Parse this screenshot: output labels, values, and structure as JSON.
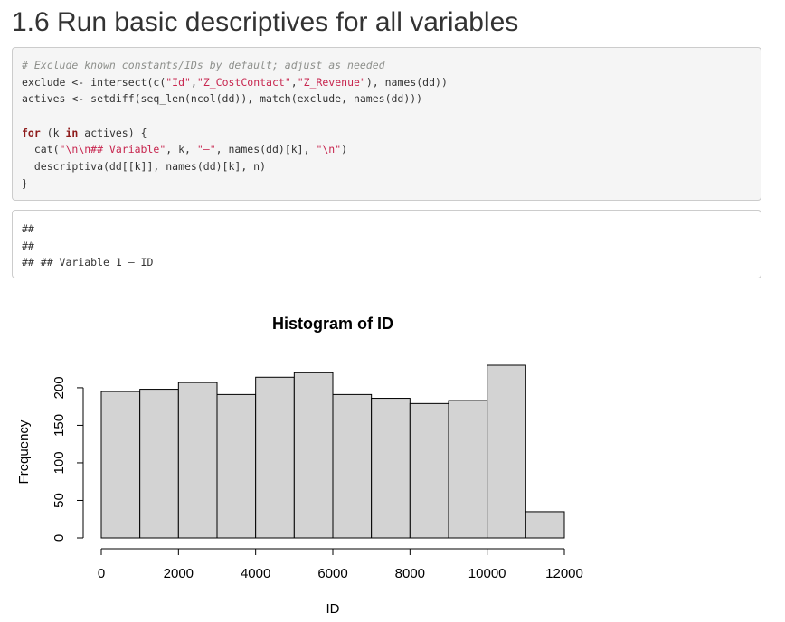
{
  "page": {
    "title": "1.6 Run basic descriptives for all variables"
  },
  "source_code": {
    "lines": [
      [
        {
          "cls": "comment",
          "text": "# Exclude known constants/IDs by default; adjust as needed"
        }
      ],
      [
        {
          "cls": "plain",
          "text": "exclude <- intersect(c("
        },
        {
          "cls": "str",
          "text": "\"Id\""
        },
        {
          "cls": "plain",
          "text": ","
        },
        {
          "cls": "str",
          "text": "\"Z_CostContact\""
        },
        {
          "cls": "plain",
          "text": ","
        },
        {
          "cls": "str",
          "text": "\"Z_Revenue\""
        },
        {
          "cls": "plain",
          "text": "), names(dd))"
        }
      ],
      [
        {
          "cls": "plain",
          "text": "actives <- setdiff(seq_len(ncol(dd)), match(exclude, names(dd)))"
        }
      ],
      [],
      [
        {
          "cls": "kw",
          "text": "for"
        },
        {
          "cls": "plain",
          "text": " (k "
        },
        {
          "cls": "kw",
          "text": "in"
        },
        {
          "cls": "plain",
          "text": " actives) {"
        }
      ],
      [
        {
          "cls": "plain",
          "text": "  cat("
        },
        {
          "cls": "str",
          "text": "\"\\n\\n## Variable\""
        },
        {
          "cls": "plain",
          "text": ", k, "
        },
        {
          "cls": "str",
          "text": "\"—\""
        },
        {
          "cls": "plain",
          "text": ", names(dd)[k], "
        },
        {
          "cls": "str",
          "text": "\"\\n\""
        },
        {
          "cls": "plain",
          "text": ")"
        }
      ],
      [
        {
          "cls": "plain",
          "text": "  descriptiva(dd[[k]], names(dd)[k], n)"
        }
      ],
      [
        {
          "cls": "plain",
          "text": "}"
        }
      ]
    ]
  },
  "console_output": {
    "lines": [
      "##",
      "##",
      "## ## Variable 1 — ID"
    ]
  },
  "chart_data": {
    "type": "bar",
    "title": "Histogram of ID",
    "xlabel": "ID",
    "ylabel": "Frequency",
    "bin_edges": [
      0,
      1000,
      2000,
      3000,
      4000,
      5000,
      6000,
      7000,
      8000,
      9000,
      10000,
      11000,
      12000
    ],
    "values": [
      195,
      198,
      207,
      191,
      214,
      220,
      191,
      186,
      179,
      183,
      230,
      35
    ],
    "xlim": [
      0,
      12000
    ],
    "ylim": [
      0,
      230
    ],
    "x_ticks": [
      "0",
      "2000",
      "4000",
      "6000",
      "8000",
      "10000",
      "12000"
    ],
    "y_ticks": [
      "0",
      "50",
      "100",
      "150",
      "200"
    ],
    "bar_color": "#d3d3d3",
    "grid": false,
    "legend": "none"
  }
}
